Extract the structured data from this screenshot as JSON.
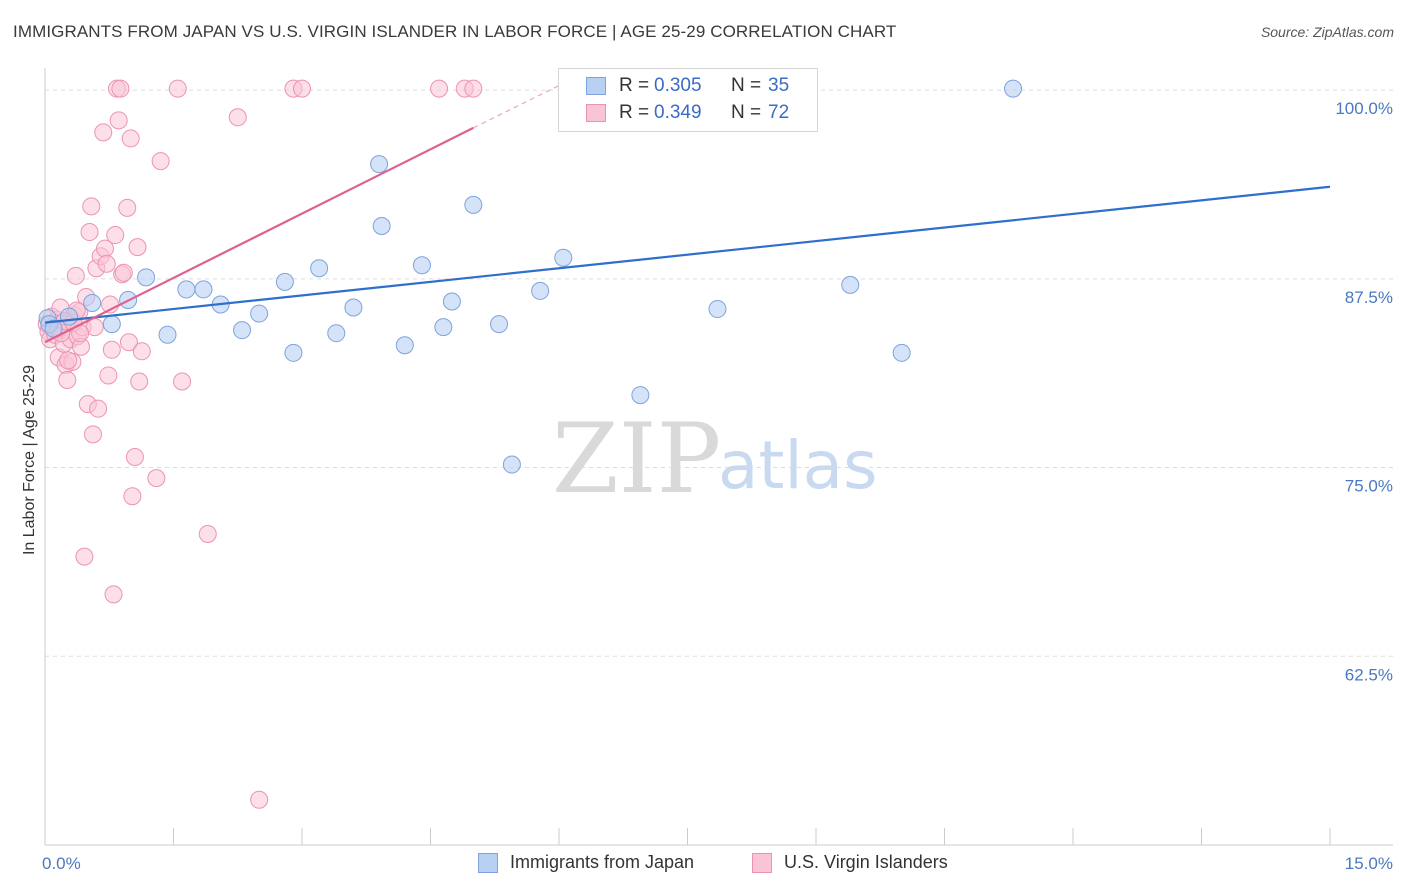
{
  "header": {
    "title": "IMMIGRANTS FROM JAPAN VS U.S. VIRGIN ISLANDER IN LABOR FORCE | AGE 25-29 CORRELATION CHART",
    "source": "Source: ZipAtlas.com"
  },
  "watermark": {
    "zip": "ZIP",
    "atlas": "atlas"
  },
  "legend": {
    "rows": [
      {
        "r_label": "R =",
        "r_value": "0.305",
        "n_label": "N =",
        "n_value": "35"
      },
      {
        "r_label": "R =",
        "r_value": "0.349",
        "n_label": "N =",
        "n_value": "72"
      }
    ]
  },
  "bottom_legend": {
    "japan": "Immigrants from Japan",
    "virgin": "U.S. Virgin Islanders"
  },
  "colors": {
    "japan_fill": "#b8d0f2",
    "japan_stroke": "#7ea3dd",
    "japan_line": "#2e6fcc",
    "virgin_fill": "#f9c4d5",
    "virgin_stroke": "#eb94b2",
    "virgin_line": "#e0608e",
    "grid": "#dddddd",
    "tick_label": "#4a78c2"
  },
  "chart_data": {
    "type": "scatter",
    "title": "IMMIGRANTS FROM JAPAN VS U.S. VIRGIN ISLANDER IN LABOR FORCE | AGE 25-29 CORRELATION CHART",
    "xlabel": "",
    "ylabel": "In Labor Force | Age 25-29",
    "xlim": [
      0,
      15
    ],
    "ylim": [
      50,
      101.2
    ],
    "x_tick_labels": [
      "0.0%",
      "15.0%"
    ],
    "y_ticks": [
      62.5,
      75.0,
      87.5,
      100.0
    ],
    "y_tick_labels": [
      "62.5%",
      "75.0%",
      "87.5%",
      "100.0%"
    ],
    "grid": true,
    "series": [
      {
        "name": "Immigrants from Japan",
        "R": 0.305,
        "N": 35,
        "trend": {
          "x": [
            0.0,
            15.0
          ],
          "y": [
            84.6,
            93.6
          ]
        },
        "points": [
          {
            "x": 0.03,
            "y": 84.9
          },
          {
            "x": 0.05,
            "y": 84.5
          },
          {
            "x": 0.1,
            "y": 84.2
          },
          {
            "x": 0.28,
            "y": 85.0
          },
          {
            "x": 0.55,
            "y": 85.9
          },
          {
            "x": 0.78,
            "y": 84.5
          },
          {
            "x": 1.18,
            "y": 87.6
          },
          {
            "x": 0.97,
            "y": 86.1
          },
          {
            "x": 1.43,
            "y": 83.8
          },
          {
            "x": 1.65,
            "y": 86.8
          },
          {
            "x": 1.85,
            "y": 86.8
          },
          {
            "x": 2.05,
            "y": 85.8
          },
          {
            "x": 2.3,
            "y": 84.1
          },
          {
            "x": 2.5,
            "y": 85.2
          },
          {
            "x": 2.8,
            "y": 87.3
          },
          {
            "x": 2.9,
            "y": 82.6
          },
          {
            "x": 3.2,
            "y": 88.2
          },
          {
            "x": 3.4,
            "y": 83.9
          },
          {
            "x": 3.6,
            "y": 85.6
          },
          {
            "x": 3.9,
            "y": 95.1
          },
          {
            "x": 3.93,
            "y": 91.0
          },
          {
            "x": 4.2,
            "y": 83.1
          },
          {
            "x": 4.4,
            "y": 88.4
          },
          {
            "x": 4.65,
            "y": 84.3
          },
          {
            "x": 4.75,
            "y": 86.0
          },
          {
            "x": 5.0,
            "y": 92.4
          },
          {
            "x": 5.3,
            "y": 84.5
          },
          {
            "x": 5.45,
            "y": 75.2
          },
          {
            "x": 5.78,
            "y": 86.7
          },
          {
            "x": 6.05,
            "y": 88.9
          },
          {
            "x": 6.95,
            "y": 79.8
          },
          {
            "x": 7.85,
            "y": 85.5
          },
          {
            "x": 9.4,
            "y": 87.1
          },
          {
            "x": 10.0,
            "y": 82.6
          },
          {
            "x": 11.3,
            "y": 100.1
          }
        ]
      },
      {
        "name": "U.S. Virgin Islanders",
        "R": 0.349,
        "N": 72,
        "trend": {
          "x": [
            0.0,
            5.0
          ],
          "y": [
            83.3,
            97.5
          ]
        },
        "trend_extension": {
          "x": [
            5.0,
            6.0
          ],
          "y": [
            97.5,
            100.3
          ]
        },
        "points": [
          {
            "x": 0.02,
            "y": 84.5
          },
          {
            "x": 0.04,
            "y": 84.0
          },
          {
            "x": 0.06,
            "y": 83.5
          },
          {
            "x": 0.08,
            "y": 85.0
          },
          {
            "x": 0.1,
            "y": 84.3
          },
          {
            "x": 0.12,
            "y": 83.8
          },
          {
            "x": 0.14,
            "y": 84.8
          },
          {
            "x": 0.16,
            "y": 82.3
          },
          {
            "x": 0.18,
            "y": 85.6
          },
          {
            "x": 0.2,
            "y": 84.1
          },
          {
            "x": 0.22,
            "y": 83.2
          },
          {
            "x": 0.24,
            "y": 81.8
          },
          {
            "x": 0.26,
            "y": 80.8
          },
          {
            "x": 0.28,
            "y": 84.6
          },
          {
            "x": 0.3,
            "y": 83.5
          },
          {
            "x": 0.32,
            "y": 82.0
          },
          {
            "x": 0.34,
            "y": 85.1
          },
          {
            "x": 0.36,
            "y": 87.7
          },
          {
            "x": 0.38,
            "y": 83.7
          },
          {
            "x": 0.4,
            "y": 85.3
          },
          {
            "x": 0.42,
            "y": 83.0
          },
          {
            "x": 0.44,
            "y": 84.3
          },
          {
            "x": 0.46,
            "y": 69.1
          },
          {
            "x": 0.48,
            "y": 86.3
          },
          {
            "x": 0.5,
            "y": 79.2
          },
          {
            "x": 0.52,
            "y": 90.6
          },
          {
            "x": 0.54,
            "y": 92.3
          },
          {
            "x": 0.56,
            "y": 77.2
          },
          {
            "x": 0.58,
            "y": 84.3
          },
          {
            "x": 0.6,
            "y": 88.2
          },
          {
            "x": 0.62,
            "y": 78.9
          },
          {
            "x": 0.65,
            "y": 89.0
          },
          {
            "x": 0.68,
            "y": 97.2
          },
          {
            "x": 0.7,
            "y": 89.5
          },
          {
            "x": 0.72,
            "y": 88.5
          },
          {
            "x": 0.74,
            "y": 81.1
          },
          {
            "x": 0.76,
            "y": 85.8
          },
          {
            "x": 0.78,
            "y": 82.8
          },
          {
            "x": 0.8,
            "y": 66.6
          },
          {
            "x": 0.82,
            "y": 90.4
          },
          {
            "x": 0.84,
            "y": 100.1
          },
          {
            "x": 0.86,
            "y": 98.0
          },
          {
            "x": 0.88,
            "y": 100.1
          },
          {
            "x": 0.9,
            "y": 87.8
          },
          {
            "x": 0.92,
            "y": 87.9
          },
          {
            "x": 0.96,
            "y": 92.2
          },
          {
            "x": 0.98,
            "y": 83.3
          },
          {
            "x": 1.0,
            "y": 96.8
          },
          {
            "x": 1.02,
            "y": 73.1
          },
          {
            "x": 1.05,
            "y": 75.7
          },
          {
            "x": 1.08,
            "y": 89.6
          },
          {
            "x": 1.1,
            "y": 80.7
          },
          {
            "x": 1.13,
            "y": 82.7
          },
          {
            "x": 1.3,
            "y": 74.3
          },
          {
            "x": 1.35,
            "y": 95.3
          },
          {
            "x": 1.55,
            "y": 100.1
          },
          {
            "x": 1.6,
            "y": 80.7
          },
          {
            "x": 1.9,
            "y": 70.6
          },
          {
            "x": 2.25,
            "y": 98.2
          },
          {
            "x": 2.5,
            "y": 53.0
          },
          {
            "x": 2.9,
            "y": 100.1
          },
          {
            "x": 3.0,
            "y": 100.1
          },
          {
            "x": 4.6,
            "y": 100.1
          },
          {
            "x": 4.9,
            "y": 100.1
          },
          {
            "x": 5.0,
            "y": 100.1
          },
          {
            "x": 0.15,
            "y": 84.2
          },
          {
            "x": 0.19,
            "y": 83.9
          },
          {
            "x": 0.23,
            "y": 84.7
          },
          {
            "x": 0.27,
            "y": 82.1
          },
          {
            "x": 0.33,
            "y": 84.6
          },
          {
            "x": 0.37,
            "y": 85.4
          },
          {
            "x": 0.41,
            "y": 83.9
          }
        ]
      }
    ]
  }
}
